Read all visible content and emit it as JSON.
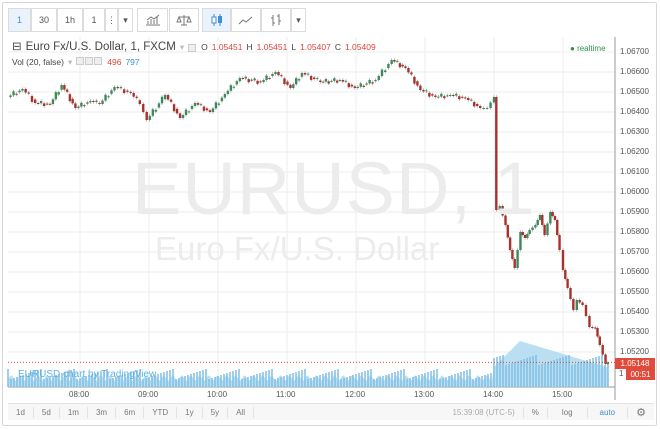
{
  "toolbar": {
    "interval_1": "1",
    "interval_30": "30",
    "interval_1h": "1h",
    "interval_custom": "1",
    "more": "⋮",
    "dropdown": "▾",
    "chart_style_dropdown": "▾",
    "icons": [
      "indicators-icon",
      "compare-icon",
      "candles-icon",
      "line-chart-icon",
      "bars-icon"
    ]
  },
  "legend": {
    "symbol": "Euro Fx/U.S. Dollar, 1, FXCM",
    "dropdown": "▾",
    "o_label": "O",
    "o": "1.05451",
    "h_label": "H",
    "h": "1.05451",
    "l_label": "L",
    "l": "1.05407",
    "c_label": "C",
    "c": "1.05409",
    "collapse": "⊟"
  },
  "volume_legend": {
    "label": "Vol (20, false)",
    "dropdown": "▾",
    "value": "496",
    "ma": "797"
  },
  "status": {
    "realtime": "realtime"
  },
  "watermark": {
    "symbol": "EURUSD, 1",
    "name": "Euro Fx/U.S. Dollar"
  },
  "credit": "EURUSD chart by TradingView",
  "price_tags": {
    "last": "1.05148",
    "countdown": "00:51",
    "partial": "1"
  },
  "bottom": {
    "ranges": [
      "1d",
      "5d",
      "1m",
      "3m",
      "6m",
      "YTD",
      "1y",
      "5y",
      "All"
    ],
    "clock": "15:39:08 (UTC-5)",
    "percent": "%",
    "log": "log",
    "auto": "auto"
  },
  "colors": {
    "up": "#3c8a5c",
    "down": "#a8322b",
    "last_price": "#e04b3c",
    "volume": "#8fcbea",
    "accent": "#3f8ed8"
  },
  "chart_data": {
    "type": "candlestick",
    "symbol": "EURUSD",
    "yticks": [
      "1.06700",
      "1.06600",
      "1.06500",
      "1.06400",
      "1.06300",
      "1.06200",
      "1.06100",
      "1.06000",
      "1.05900",
      "1.05800",
      "1.05700",
      "1.05600",
      "1.05500",
      "1.05400",
      "1.05300",
      "1.05200"
    ],
    "xticks": [
      "08:00",
      "09:00",
      "10:00",
      "11:00",
      "12:00",
      "13:00",
      "14:00",
      "15:00"
    ],
    "ylim": [
      1.051,
      1.0676
    ],
    "xlim": [
      "06:57",
      "15:40"
    ],
    "grid": true,
    "last_price": 1.05148,
    "closes": [
      [
        "06:57",
        1.06475
      ],
      [
        "07:10",
        1.06515
      ],
      [
        "07:21",
        1.06445
      ],
      [
        "07:34",
        1.0644
      ],
      [
        "07:44",
        1.06535
      ],
      [
        "07:56",
        1.0642
      ],
      [
        "08:09",
        1.06455
      ],
      [
        "08:17",
        1.0644
      ],
      [
        "08:30",
        1.06525
      ],
      [
        "08:44",
        1.06495
      ],
      [
        "08:52",
        1.0644
      ],
      [
        "08:58",
        1.0636
      ],
      [
        "09:14",
        1.06485
      ],
      [
        "09:27",
        1.0637
      ],
      [
        "09:40",
        1.06445
      ],
      [
        "09:53",
        1.064
      ],
      [
        "10:06",
        1.0649
      ],
      [
        "10:19",
        1.0657
      ],
      [
        "10:37",
        1.0655
      ],
      [
        "10:50",
        1.066
      ],
      [
        "11:03",
        1.0652
      ],
      [
        "11:13",
        1.06595
      ],
      [
        "11:29",
        1.0655
      ],
      [
        "11:46",
        1.0656
      ],
      [
        "11:59",
        1.0652
      ],
      [
        "12:17",
        1.0656
      ],
      [
        "12:31",
        1.0666
      ],
      [
        "12:43",
        1.0662
      ],
      [
        "12:56",
        1.0651
      ],
      [
        "13:09",
        1.06475
      ],
      [
        "13:22",
        1.06485
      ],
      [
        "13:35",
        1.0647
      ],
      [
        "13:48",
        1.0642
      ],
      [
        "13:54",
        1.0642
      ],
      [
        "14:00",
        1.06475
      ],
      [
        "14:02",
        1.0591
      ],
      [
        "14:05",
        1.0593
      ],
      [
        "14:10",
        1.05835
      ],
      [
        "14:14",
        1.0571
      ],
      [
        "14:18",
        1.0562
      ],
      [
        "14:23",
        1.058
      ],
      [
        "14:27",
        1.0577
      ],
      [
        "14:31",
        1.0581
      ],
      [
        "14:36",
        1.05835
      ],
      [
        "14:40",
        1.05885
      ],
      [
        "14:44",
        1.05785
      ],
      [
        "14:49",
        1.059
      ],
      [
        "14:53",
        1.0586
      ],
      [
        "14:57",
        1.0571
      ],
      [
        "15:00",
        1.0561
      ],
      [
        "15:04",
        1.0552
      ],
      [
        "15:09",
        1.0541
      ],
      [
        "15:12",
        1.0546
      ],
      [
        "15:17",
        1.05435
      ],
      [
        "15:23",
        1.05325
      ],
      [
        "15:28",
        1.0532
      ],
      [
        "15:32",
        1.05235
      ],
      [
        "15:37",
        1.0514
      ],
      [
        "15:39",
        1.05148
      ]
    ]
  }
}
